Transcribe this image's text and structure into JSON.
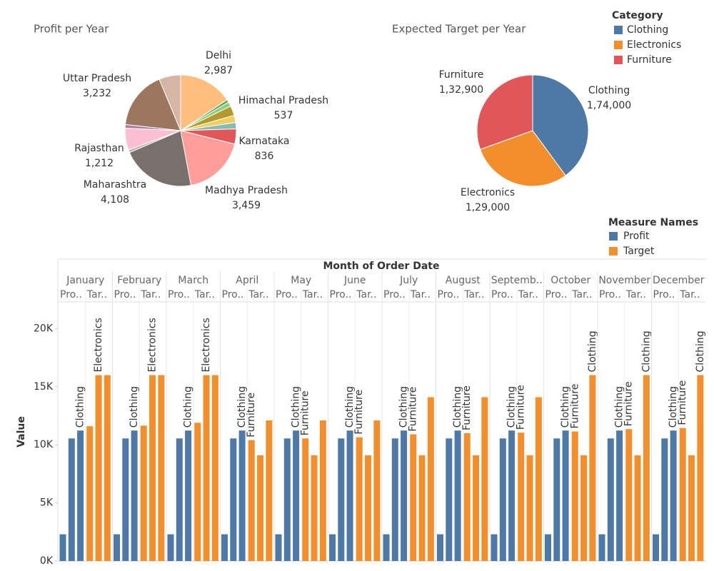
{
  "chart_data": [
    {
      "type": "pie",
      "title": "Profit per Year",
      "categories": [
        "Delhi",
        null,
        null,
        "Himachal Pradesh",
        null,
        null,
        "Karnataka",
        "Madhya Pradesh",
        "Maharashtra",
        null,
        "Rajasthan",
        null,
        "Uttar Pradesh",
        null
      ],
      "values": [
        2987,
        150,
        250,
        537,
        400,
        350,
        836,
        3459,
        4108,
        150,
        1212,
        200,
        3232,
        1200
      ],
      "value_labels": [
        "2,987",
        null,
        null,
        "537",
        null,
        null,
        "836",
        "3,459",
        "4,108",
        null,
        "1,212",
        null,
        "3,232",
        null
      ],
      "colors": [
        "#ffbe7d",
        "#59a14f",
        "#8cd17d",
        "#b6992d",
        "#f1ce63",
        "#86bcb6",
        "#e15759",
        "#ff9d9a",
        "#79706e",
        "#bab0ac",
        "#fabfd2",
        "#b07aa1",
        "#9d7660",
        "#d7b5a6"
      ]
    },
    {
      "type": "pie",
      "title": "Expected Target per Year",
      "legend_title": "Category",
      "categories": [
        "Clothing",
        "Electronics",
        "Furniture"
      ],
      "values": [
        174000,
        129000,
        132900
      ],
      "value_labels": [
        "1,74,000",
        "1,29,000",
        "1,32,900"
      ],
      "colors": [
        "#4e79a7",
        "#f28e2b",
        "#e15759"
      ]
    },
    {
      "type": "grouped-bar",
      "x_label": "Month of Order Date",
      "y_label": "Value",
      "legend_title": "Measure Names",
      "categories": [
        "January",
        "February",
        "March",
        "April",
        "May",
        "June",
        "July",
        "August",
        "Septemb..",
        "October",
        "November",
        "December"
      ],
      "ylim": [
        0,
        22300
      ],
      "yticks": [
        {
          "value": 0,
          "label": "0K"
        },
        {
          "value": 5000,
          "label": "5K"
        },
        {
          "value": 10000,
          "label": "10K"
        },
        {
          "value": 15000,
          "label": "15K"
        },
        {
          "value": 20000,
          "label": "20K"
        }
      ],
      "series": [
        {
          "name": "Profit",
          "color": "#4e79a7",
          "headers": [
            "Pro..",
            "Pro..",
            "Pro..",
            "Pro..",
            "Pro..",
            "Pro..",
            "Pro..",
            "Pro..",
            "Pro..",
            "Pro..",
            "Pro..",
            "Pro.."
          ],
          "values": [
            [
              2300,
              10550,
              11230
            ],
            [
              2300,
              10550,
              11230
            ],
            [
              2300,
              10550,
              11230
            ],
            [
              2300,
              10550,
              11230
            ],
            [
              2300,
              10550,
              11230
            ],
            [
              2300,
              10550,
              11230
            ],
            [
              2300,
              10550,
              11230
            ],
            [
              2300,
              10550,
              11230
            ],
            [
              2300,
              10550,
              11230
            ],
            [
              2300,
              10550,
              11230
            ],
            [
              2300,
              10550,
              11230
            ],
            [
              2300,
              10550,
              11230
            ]
          ],
          "labels": [
            [
              null,
              null,
              "Clothing"
            ],
            [
              null,
              null,
              "Clothing"
            ],
            [
              null,
              null,
              "Clothing"
            ],
            [
              null,
              null,
              "Clothing"
            ],
            [
              null,
              null,
              "Clothing"
            ],
            [
              null,
              null,
              "Clothing"
            ],
            [
              null,
              null,
              "Clothing"
            ],
            [
              null,
              null,
              "Clothing"
            ],
            [
              null,
              null,
              "Clothing"
            ],
            [
              null,
              null,
              "Clothing"
            ],
            [
              null,
              null,
              "Clothing"
            ],
            [
              null,
              null,
              "Clothing"
            ]
          ]
        },
        {
          "name": "Target",
          "color": "#f28e2b",
          "headers": [
            "Tar..",
            "Tar..",
            "Tar..",
            "Tar..",
            "Tar..",
            "Tar..",
            "Tar..",
            "Tar..",
            "Tar..",
            "Tar..",
            "Tar..",
            "Tar.."
          ],
          "values": [
            [
              11600,
              16000,
              16000
            ],
            [
              11650,
              16000,
              16000
            ],
            [
              11900,
              16000,
              16000
            ],
            [
              10400,
              9100,
              12100
            ],
            [
              10550,
              9100,
              12100
            ],
            [
              10650,
              9100,
              12100
            ],
            [
              10900,
              9100,
              14100
            ],
            [
              11000,
              9100,
              14100
            ],
            [
              11050,
              9100,
              14100
            ],
            [
              11150,
              9100,
              16000
            ],
            [
              11350,
              9100,
              16000
            ],
            [
              11450,
              9100,
              16000
            ]
          ],
          "labels": [
            [
              null,
              "Electronics",
              null
            ],
            [
              null,
              "Electronics",
              null
            ],
            [
              null,
              "Electronics",
              null
            ],
            [
              "Furniture",
              null,
              null
            ],
            [
              "Furniture",
              null,
              null
            ],
            [
              "Furniture",
              null,
              null
            ],
            [
              "Furniture",
              null,
              null
            ],
            [
              "Furniture",
              null,
              null
            ],
            [
              "Furniture",
              null,
              null
            ],
            [
              "Furniture",
              null,
              "Clothing"
            ],
            [
              "Furniture",
              null,
              "Clothing"
            ],
            [
              "Furniture",
              null,
              "Clothing"
            ]
          ]
        }
      ]
    }
  ]
}
